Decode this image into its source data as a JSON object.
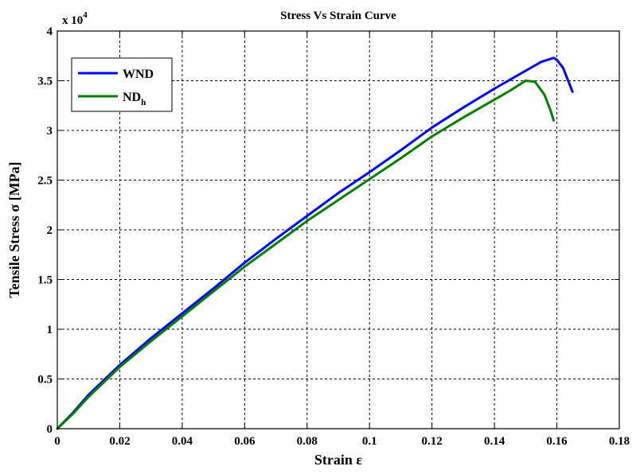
{
  "chart_data": {
    "type": "line",
    "title": "Stress Vs Strain Curve",
    "xlabel": "Strain ε",
    "ylabel": "Tensile Stress σ [MPa]",
    "y_multiplier": "x 10",
    "y_multiplier_exp": "4",
    "xlim": [
      0,
      0.18
    ],
    "ylim": [
      0,
      40000
    ],
    "x_ticks": [
      0,
      0.02,
      0.04,
      0.06,
      0.08,
      0.1,
      0.12,
      0.14,
      0.16,
      0.18
    ],
    "x_tick_labels": [
      "0",
      "0.02",
      "0.04",
      "0.06",
      "0.08",
      "0.1",
      "0.12",
      "0.14",
      "0.16",
      "0.18"
    ],
    "y_ticks": [
      0,
      5000,
      10000,
      15000,
      20000,
      25000,
      30000,
      35000,
      40000
    ],
    "y_tick_labels": [
      "0",
      "0.5",
      "1",
      "1.5",
      "2",
      "2.5",
      "3",
      "3.5",
      "4"
    ],
    "grid": true,
    "legend_position": "top-left",
    "series": [
      {
        "name": "WND",
        "color": "#0000ff",
        "x": [
          0,
          0.005,
          0.01,
          0.02,
          0.03,
          0.04,
          0.05,
          0.06,
          0.07,
          0.08,
          0.09,
          0.1,
          0.11,
          0.12,
          0.13,
          0.14,
          0.15,
          0.155,
          0.159,
          0.16,
          0.162,
          0.165
        ],
        "y": [
          0,
          1600,
          3400,
          6400,
          9100,
          11600,
          14100,
          16700,
          19100,
          21400,
          23700,
          25800,
          28000,
          30300,
          32300,
          34200,
          36000,
          36900,
          37300,
          37100,
          36300,
          33900
        ]
      },
      {
        "name": "NDh",
        "name_main": "ND",
        "name_sub": "h",
        "color": "#008000",
        "x": [
          0,
          0.005,
          0.01,
          0.02,
          0.03,
          0.04,
          0.05,
          0.06,
          0.07,
          0.08,
          0.09,
          0.1,
          0.11,
          0.12,
          0.13,
          0.14,
          0.145,
          0.15,
          0.153,
          0.156,
          0.158,
          0.159
        ],
        "y": [
          0,
          1500,
          3200,
          6200,
          8800,
          11300,
          13800,
          16300,
          18600,
          20900,
          23000,
          25100,
          27200,
          29400,
          31300,
          33100,
          34000,
          35000,
          34900,
          33600,
          32000,
          31000
        ]
      }
    ]
  }
}
